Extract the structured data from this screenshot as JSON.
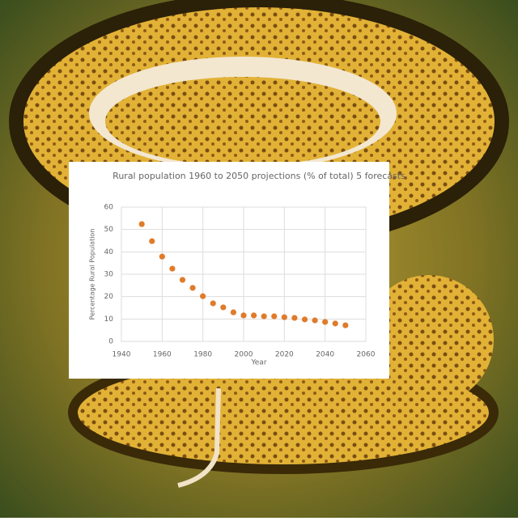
{
  "chart_data": {
    "type": "scatter",
    "title": "Rural population 1960 to 2050 projections (% of total) 5 forecasts",
    "x_label": "Year",
    "y_label": "Percentage Rural Population",
    "x": [
      1950,
      1955,
      1960,
      1965,
      1970,
      1975,
      1980,
      1985,
      1990,
      1995,
      2000,
      2005,
      2010,
      2015,
      2020,
      2025,
      2030,
      2035,
      2040,
      2045,
      2050
    ],
    "values": [
      52.4,
      44.8,
      37.9,
      32.5,
      27.5,
      23.9,
      20.2,
      17.0,
      15.2,
      13.0,
      11.6,
      11.6,
      11.2,
      11.2,
      10.8,
      10.5,
      9.8,
      9.4,
      8.7,
      8.0,
      7.2
    ],
    "color": "#e07b2a",
    "xlim": [
      1940,
      2060
    ],
    "xticks": [
      1940,
      1960,
      1980,
      2000,
      2020,
      2040,
      2060
    ],
    "ylim": [
      0,
      60
    ],
    "yticks": [
      0,
      10,
      20,
      30,
      40,
      50,
      60
    ],
    "grid": true
  }
}
